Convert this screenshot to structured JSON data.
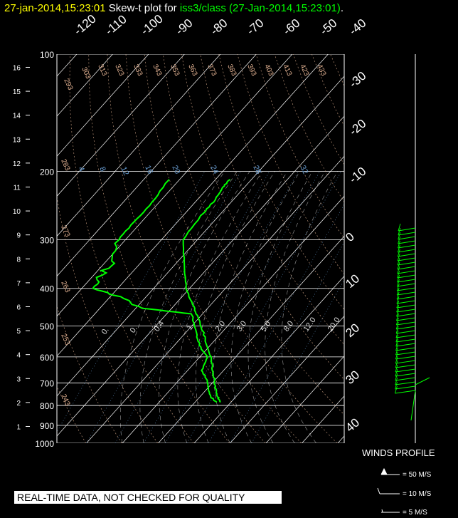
{
  "header": {
    "time": "27-jan-2014,15:23:01",
    "mid": "Skew-t plot for",
    "station": "iss3/class (27-Jan-2014,15:23:01)",
    "period": "."
  },
  "qc_banner": "REAL-TIME DATA, NOT CHECKED FOR QUALITY",
  "winds_profile": {
    "title": "WINDS PROFILE",
    "legend": [
      "= 50 M/S",
      "= 10 M/S",
      "= 5 M/S"
    ]
  },
  "colors": {
    "sounding": "#00ff00",
    "title_time": "#ffff00",
    "grid": "#ffffff",
    "mixing_ratio": "#6699cc",
    "adiabat": "#e0b090"
  },
  "chart_data": {
    "type": "line",
    "title": "Skew-t plot",
    "y_pressure_ticks": [
      100,
      200,
      300,
      400,
      500,
      600,
      700,
      800,
      900,
      1000
    ],
    "y_height_ticks": [
      1,
      2,
      3,
      4,
      5,
      6,
      7,
      8,
      9,
      10,
      11,
      12,
      13,
      14,
      15,
      16
    ],
    "skewed_temperature_labels": [
      "-120",
      "-110",
      "-100",
      "-90",
      "-80",
      "-70",
      "-60",
      "-50",
      "-40",
      "-30",
      "-20",
      "-10",
      "0",
      "10",
      "20",
      "30",
      "40"
    ],
    "dry_adiabat_labels": [
      "293",
      "303",
      "313",
      "323",
      "333",
      "343",
      "353",
      "363",
      "373",
      "383",
      "393",
      "403",
      "413",
      "423",
      "433",
      "283",
      "273",
      "263",
      "253",
      "243"
    ],
    "mixing_ratio_labels": [
      "4",
      "8",
      "12",
      "16",
      "20",
      "24",
      "28",
      "32"
    ],
    "moist_adiabat_labels": [
      "0.",
      "0.",
      "0.4",
      "1.",
      "2.0",
      "3.0",
      "5.0",
      "8.0",
      "12.0",
      "20.0"
    ],
    "series": [
      {
        "name": "temperature",
        "points": [
          {
            "p": 785,
            "t": -3
          },
          {
            "p": 760,
            "t": -5
          },
          {
            "p": 720,
            "t": -8
          },
          {
            "p": 690,
            "t": -10
          },
          {
            "p": 650,
            "t": -13
          },
          {
            "p": 600,
            "t": -17
          },
          {
            "p": 560,
            "t": -21
          },
          {
            "p": 520,
            "t": -25
          },
          {
            "p": 470,
            "t": -31
          },
          {
            "p": 440,
            "t": -35
          },
          {
            "p": 400,
            "t": -41
          },
          {
            "p": 350,
            "t": -47
          },
          {
            "p": 300,
            "t": -54
          },
          {
            "p": 260,
            "t": -55
          },
          {
            "p": 240,
            "t": -55
          },
          {
            "p": 220,
            "t": -56
          },
          {
            "p": 210,
            "t": -56
          }
        ]
      },
      {
        "name": "dewpoint",
        "points": [
          {
            "p": 785,
            "t": -4
          },
          {
            "p": 760,
            "t": -7
          },
          {
            "p": 720,
            "t": -10
          },
          {
            "p": 690,
            "t": -12
          },
          {
            "p": 650,
            "t": -16
          },
          {
            "p": 600,
            "t": -18
          },
          {
            "p": 560,
            "t": -23
          },
          {
            "p": 520,
            "t": -27
          },
          {
            "p": 465,
            "t": -33
          },
          {
            "p": 450,
            "t": -48
          },
          {
            "p": 420,
            "t": -58
          },
          {
            "p": 400,
            "t": -66
          },
          {
            "p": 370,
            "t": -68
          },
          {
            "p": 340,
            "t": -68
          },
          {
            "p": 300,
            "t": -72
          },
          {
            "p": 270,
            "t": -72
          },
          {
            "p": 240,
            "t": -72
          },
          {
            "p": 210,
            "t": -73
          }
        ]
      }
    ],
    "ylim": [
      1000,
      100
    ],
    "xlim": [
      -40,
      40
    ],
    "y_scale": "log",
    "grid": true
  }
}
